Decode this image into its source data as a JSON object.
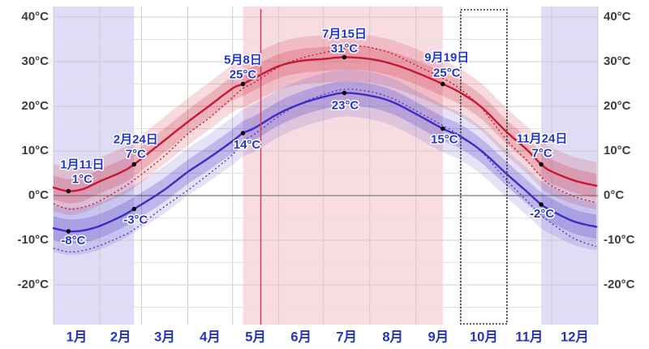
{
  "chart_data": {
    "type": "line",
    "title": "",
    "x_unit": "day_of_year",
    "x_range": [
      1,
      366
    ],
    "ylim_c": [
      -28,
      42
    ],
    "grid": "on",
    "y_ticks": [
      {
        "value": 40,
        "label": "40°C"
      },
      {
        "value": 30,
        "label": "30°C"
      },
      {
        "value": 20,
        "label": "20°C"
      },
      {
        "value": 10,
        "label": "10°C"
      },
      {
        "value": 0,
        "label": "0°C"
      },
      {
        "value": -10,
        "label": "-10°C"
      },
      {
        "value": -20,
        "label": "-20°C"
      }
    ],
    "month_labels": [
      "1月",
      "2月",
      "3月",
      "4月",
      "5月",
      "6月",
      "7月",
      "8月",
      "9月",
      "10月",
      "11月",
      "12月"
    ],
    "month_start_days": [
      1,
      32,
      60,
      91,
      121,
      152,
      182,
      213,
      244,
      274,
      305,
      335,
      366
    ],
    "series": [
      {
        "name": "average-high",
        "style": "solid",
        "color": "#c81732",
        "points": [
          [
            1,
            1.8
          ],
          [
            11,
            1
          ],
          [
            21,
            1.5
          ],
          [
            32,
            3.2
          ],
          [
            46,
            5.2
          ],
          [
            55,
            7
          ],
          [
            74,
            12
          ],
          [
            91,
            16.5
          ],
          [
            105,
            20
          ],
          [
            121,
            24
          ],
          [
            128,
            25
          ],
          [
            136,
            26.4
          ],
          [
            152,
            29
          ],
          [
            167,
            30.2
          ],
          [
            182,
            30.6
          ],
          [
            196,
            31
          ],
          [
            213,
            30.6
          ],
          [
            228,
            29.5
          ],
          [
            244,
            27.6
          ],
          [
            262,
            25
          ],
          [
            274,
            23
          ],
          [
            288,
            19.8
          ],
          [
            305,
            14.2
          ],
          [
            318,
            10.4
          ],
          [
            328,
            7
          ],
          [
            335,
            5.4
          ],
          [
            350,
            3.4
          ],
          [
            365,
            2.2
          ]
        ]
      },
      {
        "name": "average-low",
        "style": "solid",
        "color": "#3f2cc4",
        "points": [
          [
            1,
            -7.3
          ],
          [
            11,
            -8
          ],
          [
            21,
            -7.8
          ],
          [
            32,
            -6.8
          ],
          [
            46,
            -4.7
          ],
          [
            55,
            -3
          ],
          [
            74,
            1
          ],
          [
            91,
            5.3
          ],
          [
            105,
            8.4
          ],
          [
            121,
            12.2
          ],
          [
            128,
            14
          ],
          [
            136,
            15.2
          ],
          [
            152,
            18.4
          ],
          [
            167,
            20.6
          ],
          [
            182,
            22.1
          ],
          [
            196,
            23
          ],
          [
            213,
            22.4
          ],
          [
            228,
            21
          ],
          [
            244,
            18.3
          ],
          [
            262,
            15
          ],
          [
            274,
            13.2
          ],
          [
            288,
            10
          ],
          [
            305,
            4.8
          ],
          [
            318,
            1
          ],
          [
            328,
            -2
          ],
          [
            335,
            -3.4
          ],
          [
            350,
            -5.8
          ],
          [
            365,
            -7
          ]
        ]
      },
      {
        "name": "perceived-high",
        "style": "dotted",
        "color": "#c81732",
        "points": [
          [
            1,
            -1.8
          ],
          [
            11,
            -3
          ],
          [
            21,
            -2.6
          ],
          [
            32,
            -1.2
          ],
          [
            46,
            1.5
          ],
          [
            55,
            3.5
          ],
          [
            74,
            8.5
          ],
          [
            91,
            13.8
          ],
          [
            105,
            17.3
          ],
          [
            121,
            22
          ],
          [
            128,
            24
          ],
          [
            136,
            25.4
          ],
          [
            152,
            28.8
          ],
          [
            167,
            30.8
          ],
          [
            182,
            32
          ],
          [
            196,
            33
          ],
          [
            205,
            33.4
          ],
          [
            213,
            33.2
          ],
          [
            228,
            31.8
          ],
          [
            244,
            29.2
          ],
          [
            262,
            26.3
          ],
          [
            274,
            23.8
          ],
          [
            288,
            19.6
          ],
          [
            305,
            12.4
          ],
          [
            318,
            8
          ],
          [
            328,
            4.2
          ],
          [
            335,
            2.2
          ],
          [
            350,
            -0.2
          ],
          [
            365,
            -1.6
          ]
        ]
      },
      {
        "name": "perceived-low",
        "style": "dotted",
        "color": "#4b3ec5",
        "points": [
          [
            1,
            -11.8
          ],
          [
            11,
            -12.6
          ],
          [
            21,
            -12.3
          ],
          [
            32,
            -11.2
          ],
          [
            46,
            -9.2
          ],
          [
            55,
            -7.6
          ],
          [
            74,
            -2.8
          ],
          [
            91,
            1.2
          ],
          [
            105,
            4.8
          ],
          [
            121,
            9.2
          ],
          [
            128,
            12.2
          ],
          [
            136,
            13.8
          ],
          [
            152,
            17.8
          ],
          [
            167,
            20.7
          ],
          [
            182,
            22.6
          ],
          [
            196,
            23.8
          ],
          [
            213,
            23.3
          ],
          [
            228,
            21.8
          ],
          [
            244,
            19
          ],
          [
            262,
            15.7
          ],
          [
            274,
            13.4
          ],
          [
            288,
            9.8
          ],
          [
            305,
            3.4
          ],
          [
            318,
            -1
          ],
          [
            328,
            -4.4
          ],
          [
            335,
            -6.2
          ],
          [
            350,
            -9.6
          ],
          [
            365,
            -11.4
          ]
        ]
      }
    ],
    "band_inner_halfwidth_c": 2.7,
    "band_outer_halfwidth_c": 5.3,
    "seasons": [
      {
        "name": "cold-season-start",
        "start_day": 1,
        "end_day": 55,
        "color": "#dfddf5"
      },
      {
        "name": "warm-season",
        "start_day": 128,
        "end_day": 262,
        "color": "#f9dce2"
      },
      {
        "name": "cold-season-end",
        "start_day": 328,
        "end_day": 366,
        "color": "#dfddf5"
      }
    ],
    "today_marker": {
      "day": 140,
      "color": "#c9445a"
    },
    "selection_rect": {
      "start_day": 274,
      "end_day": 305,
      "stroke": "#3a4e57"
    },
    "annotations": [
      {
        "series": "high",
        "day": 11,
        "date": "1月11日",
        "temp": "1°C",
        "value": 1,
        "dx": 17,
        "dy_date": -32,
        "dy_temp": -14
      },
      {
        "series": "high",
        "day": 55,
        "date": "2月24日",
        "temp": "7°C",
        "value": 7,
        "dx": 2,
        "dy_date": -30,
        "dy_temp": -12
      },
      {
        "series": "high",
        "day": 128,
        "date": "5月8日",
        "temp": "25°C",
        "value": 25,
        "dx": 0,
        "dy_date": -29,
        "dy_temp": -11
      },
      {
        "series": "high",
        "day": 196,
        "date": "7月15日",
        "temp": "31°C",
        "value": 31,
        "dx": 0,
        "dy_date": -28,
        "dy_temp": -10
      },
      {
        "series": "high",
        "day": 262,
        "date": "9月19日",
        "temp": "25°C",
        "value": 25,
        "dx": 5,
        "dy_date": -32,
        "dy_temp": -13
      },
      {
        "series": "high",
        "day": 328,
        "date": "11月24日",
        "temp": "7°C",
        "value": 7,
        "dx": 1,
        "dy_date": -31,
        "dy_temp": -13
      },
      {
        "series": "low",
        "day": 11,
        "temp": "-8°C",
        "value": -8,
        "dx": 6,
        "dy_temp": 12
      },
      {
        "series": "low",
        "day": 55,
        "temp": "-3°C",
        "value": -3,
        "dx": 2,
        "dy_temp": 14
      },
      {
        "series": "low",
        "day": 128,
        "temp": "14°C",
        "value": 14,
        "dx": 5,
        "dy_temp": 15
      },
      {
        "series": "low",
        "day": 196,
        "temp": "23°C",
        "value": 23,
        "dx": 1,
        "dy_temp": 16
      },
      {
        "series": "low",
        "day": 262,
        "temp": "15°C",
        "value": 15,
        "dx": 2,
        "dy_temp": 14
      },
      {
        "series": "low",
        "day": 328,
        "temp": "-2°C",
        "value": -2,
        "dx": 1,
        "dy_temp": 12
      }
    ],
    "legend_position": "none"
  },
  "colors": {
    "high_band_outer": "rgba(201,23,50,0.16)",
    "high_band_inner": "rgba(201,23,50,0.20)",
    "low_band_outer": "rgba(73,48,196,0.14)",
    "low_band_inner": "rgba(73,48,196,0.24)",
    "grid_major": "#cccccc",
    "grid_minor": "#e0e0e0",
    "grid_zero": "#8f8f8f",
    "axis_text": "#3d3d3d",
    "month_text": "#2433c2",
    "annotation_text": "#2136c8",
    "dot": "#000000",
    "background": "#ffffff"
  }
}
